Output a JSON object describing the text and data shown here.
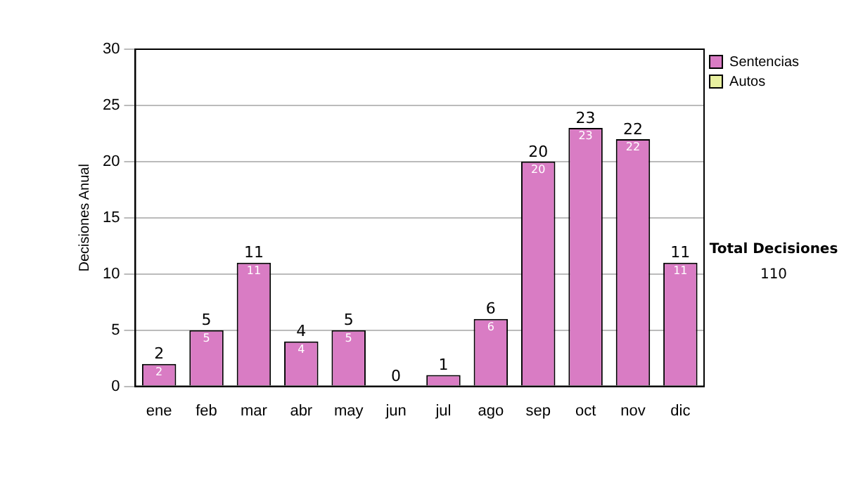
{
  "chart_data": {
    "type": "bar",
    "ylabel": "Decisiones Anual",
    "categories": [
      "ene",
      "feb",
      "mar",
      "abr",
      "may",
      "jun",
      "jul",
      "ago",
      "sep",
      "oct",
      "nov",
      "dic"
    ],
    "stacked": true,
    "series": [
      {
        "name": "Sentencias",
        "color": "#d97cc4",
        "values": [
          2,
          5,
          11,
          4,
          5,
          0,
          1,
          6,
          20,
          23,
          22,
          11
        ],
        "value_labels": [
          "2",
          "5",
          "11",
          "4",
          "5",
          null,
          null,
          "6",
          "20",
          "23",
          "22",
          "11"
        ]
      },
      {
        "name": "Autos",
        "color": "#e8f0a0",
        "values": [
          0,
          0,
          0,
          0,
          0,
          0,
          0,
          0,
          0,
          0,
          0,
          0
        ]
      }
    ],
    "totals": [
      "2",
      "5",
      "11",
      "4",
      "5",
      "0",
      "1",
      "6",
      "20",
      "23",
      "22",
      "11"
    ],
    "ylim": [
      0,
      30
    ],
    "yticks": [
      0,
      5,
      10,
      15,
      20,
      25,
      30
    ],
    "grid": "y",
    "legend": "right",
    "annotations": [
      "Total Decisiones",
      "110"
    ]
  }
}
